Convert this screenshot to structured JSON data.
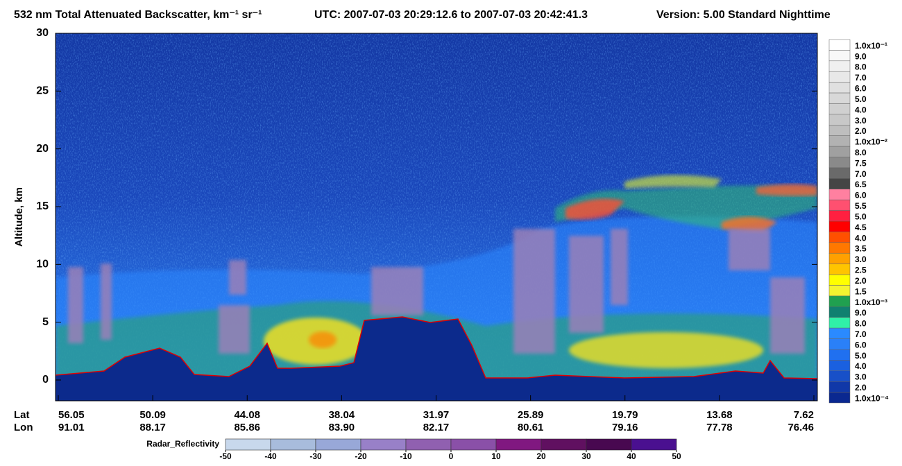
{
  "chart_data": {
    "type": "curtain",
    "title": "532 nm Total Attenuated Backscatter, km⁻¹ sr⁻¹",
    "time_range": "UTC:  2007-07-03 20:29:12.6  to  2007-07-03 20:42:41.3",
    "version": "Version: 5.00  Standard  Nighttime",
    "y_label": "Altitude, km",
    "ylim": [
      -1.8,
      30
    ],
    "yticks": [
      0,
      5,
      10,
      15,
      20,
      25,
      30
    ],
    "lat_label": "Lat",
    "lon_label": "Lon",
    "lat": [
      "56.05",
      "50.09",
      "44.08",
      "38.04",
      "31.97",
      "25.89",
      "19.79",
      "13.68",
      "7.62"
    ],
    "lon": [
      "91.01",
      "88.17",
      "85.86",
      "83.90",
      "82.17",
      "80.61",
      "79.16",
      "77.78",
      "76.46"
    ],
    "colorbar": {
      "labels": [
        "1.0x10⁻¹",
        "9.0",
        "8.0",
        "7.0",
        "6.0",
        "5.0",
        "4.0",
        "3.0",
        "2.0",
        "1.0x10⁻²",
        "8.0",
        "7.5",
        "7.0",
        "6.5",
        "6.0",
        "5.5",
        "5.0",
        "4.5",
        "4.0",
        "3.5",
        "3.0",
        "2.5",
        "2.0",
        "1.5",
        "1.0x10⁻³",
        "9.0",
        "8.0",
        "7.0",
        "6.0",
        "5.0",
        "4.0",
        "3.0",
        "2.0",
        "1.0x10⁻⁴"
      ],
      "colors": [
        "#ffffff",
        "#f8f8f8",
        "#f0f0f0",
        "#e8e8e8",
        "#e0e0e0",
        "#d8d8d8",
        "#d0d0d0",
        "#c8c8c8",
        "#bebebe",
        "#b2b2b2",
        "#a0a0a0",
        "#8a8a8a",
        "#6a6a6a",
        "#454545",
        "#ff80a0",
        "#ff5070",
        "#ff2040",
        "#ff0000",
        "#ff5000",
        "#ff7800",
        "#ffa000",
        "#ffc400",
        "#ffff00",
        "#f4f430",
        "#20a050",
        "#108070",
        "#30f0a8",
        "#2a8aff",
        "#2a80f8",
        "#2070f0",
        "#1a60e0",
        "#1850c8",
        "#1038a8",
        "#0a2890"
      ]
    },
    "radar": {
      "label": "Radar_Reflectivity",
      "ticks": [
        -50,
        -40,
        -30,
        -20,
        -10,
        0,
        10,
        20,
        30,
        40,
        50
      ],
      "colors": [
        "#c8d8ec",
        "#a8bcdc",
        "#98a8d8",
        "#9880c8",
        "#9060b0",
        "#8a50a8",
        "#801880",
        "#601060",
        "#480850",
        "#4a1090"
      ]
    }
  }
}
